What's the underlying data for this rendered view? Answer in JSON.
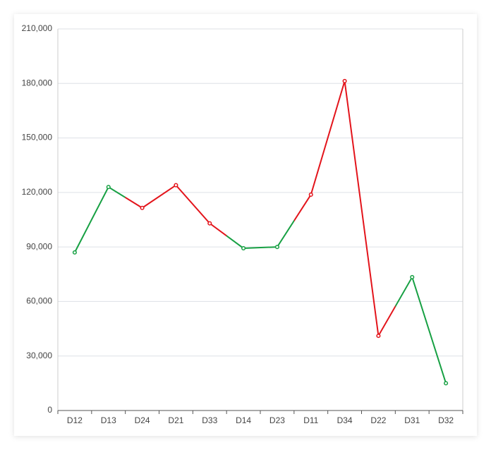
{
  "chart_data": {
    "type": "line",
    "categories": [
      "D12",
      "D13",
      "D24",
      "D21",
      "D33",
      "D14",
      "D23",
      "D11",
      "D34",
      "D22",
      "D31",
      "D32"
    ],
    "series": [
      {
        "values": [
          87000,
          123000,
          111500,
          124000,
          103000,
          89300,
          90000,
          118800,
          181300,
          41100,
          73400,
          15000
        ],
        "point_colors": [
          "#17a043",
          "#17a043",
          "#e3141b",
          "#e3141b",
          "#e3141b",
          "#17a043",
          "#17a043",
          "#e3141b",
          "#e3141b",
          "#e3141b",
          "#17a043",
          "#17a043"
        ]
      }
    ],
    "ylim": [
      0,
      210000
    ],
    "yticks": [
      0,
      {
        "value": 30000,
        "label": "30,000"
      },
      {
        "value": 60000,
        "label": "60,000"
      },
      {
        "value": 90000,
        "label": "90,000"
      },
      {
        "value": 120000,
        "label": "120,000"
      },
      {
        "value": 150000,
        "label": "150,000"
      },
      {
        "value": 180000,
        "label": "180,000"
      },
      {
        "value": 210000,
        "label": "210,000"
      }
    ],
    "grid": true
  }
}
